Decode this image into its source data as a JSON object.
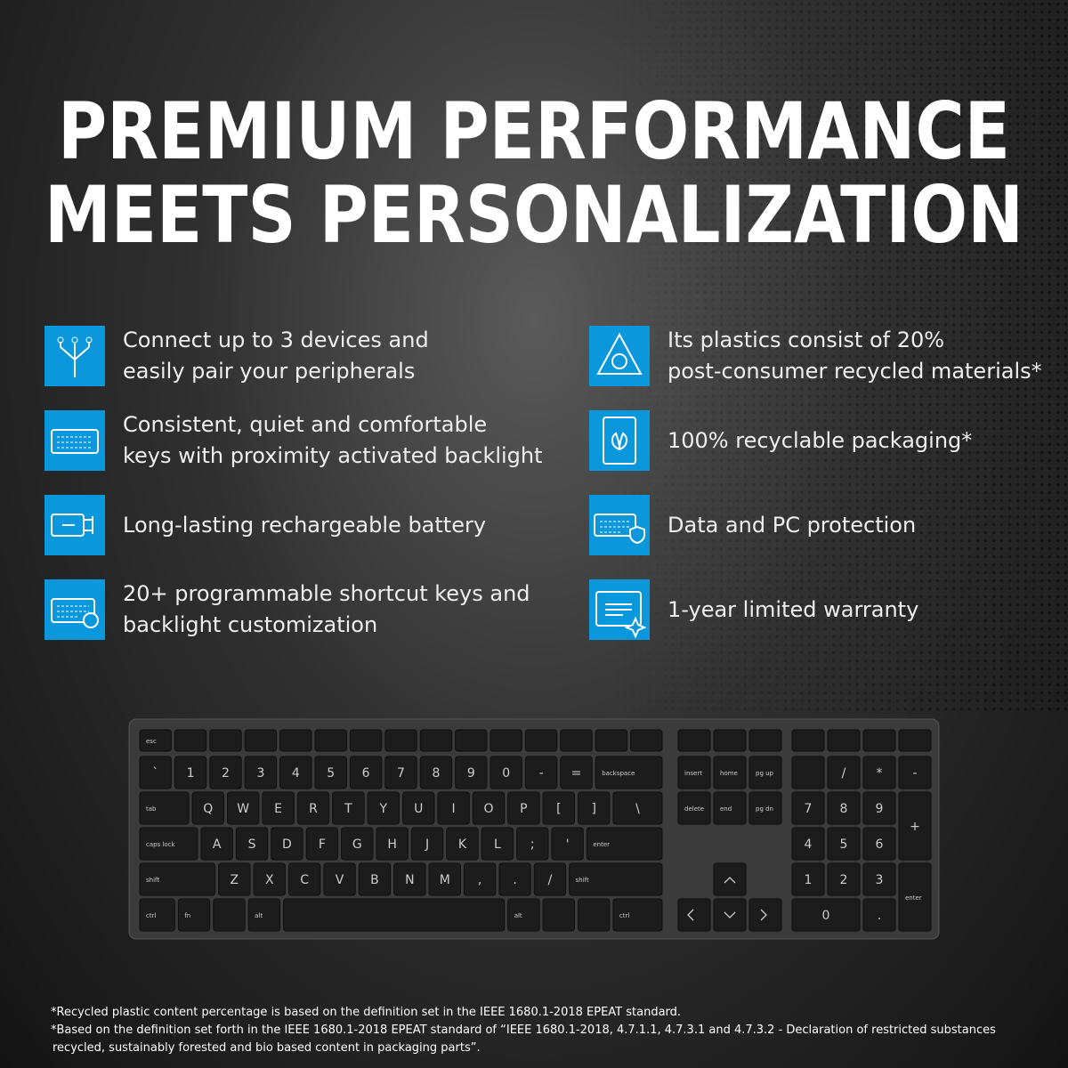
{
  "title": {
    "line1": "PREMIUM PERFORMANCE",
    "line2": "MEETS PERSONALIZATION"
  },
  "features": [
    {
      "lines": [
        "Connect up to 3 devices and",
        "easily pair your peripherals"
      ]
    },
    {
      "lines": [
        "Consistent, quiet and comfortable",
        "keys with proximity activated backlight"
      ]
    },
    {
      "lines": [
        "Long-lasting rechargeable battery"
      ]
    },
    {
      "lines": [
        "20+ programmable shortcut keys and",
        "backlight customization"
      ]
    },
    {
      "lines": [
        "Its plastics consist of 20%",
        "post-consumer recycled materials*"
      ]
    },
    {
      "lines": [
        "100% recyclable packaging*"
      ]
    },
    {
      "lines": [
        "Data and PC protection"
      ]
    },
    {
      "lines": [
        "1-year limited warranty"
      ]
    }
  ],
  "keyboard": {
    "rows": [
      [
        "esc"
      ],
      [
        "`",
        "1",
        "2",
        "3",
        "4",
        "5",
        "6",
        "7",
        "8",
        "9",
        "0",
        "-",
        "=",
        "backspace"
      ],
      [
        "tab",
        "Q",
        "W",
        "E",
        "R",
        "T",
        "Y",
        "U",
        "I",
        "O",
        "P",
        "[",
        "]",
        "\\"
      ],
      [
        "caps lock",
        "A",
        "S",
        "D",
        "F",
        "G",
        "H",
        "J",
        "K",
        "L",
        ";",
        "'",
        "enter"
      ],
      [
        "shift",
        "Z",
        "X",
        "C",
        "V",
        "B",
        "N",
        "M",
        ",",
        ".",
        "/",
        "shift"
      ],
      [
        "ctrl",
        "fn",
        "alt",
        "alt",
        "ctrl"
      ]
    ],
    "nav": [
      "insert",
      "home",
      "pg up",
      "delete",
      "end",
      "pg dn"
    ],
    "numpad": [
      "/",
      "*",
      "-",
      "7",
      "8",
      "9",
      "+",
      "4",
      "5",
      "6",
      "1",
      "2",
      "3",
      "enter",
      "0",
      "."
    ]
  },
  "footnotes": [
    "*Recycled plastic content percentage is based on the definition set in the IEEE 1680.1-2018 EPEAT standard.",
    "*Based on the definition set forth in the IEEE 1680.1-2018 EPEAT standard of “IEEE 1680.1-2018, 4.7.1.1, 4.7.3.1 and 4.7.3.2 - Declaration of restricted substances",
    "recycled, sustainably forested and bio based content in packaging parts”."
  ]
}
